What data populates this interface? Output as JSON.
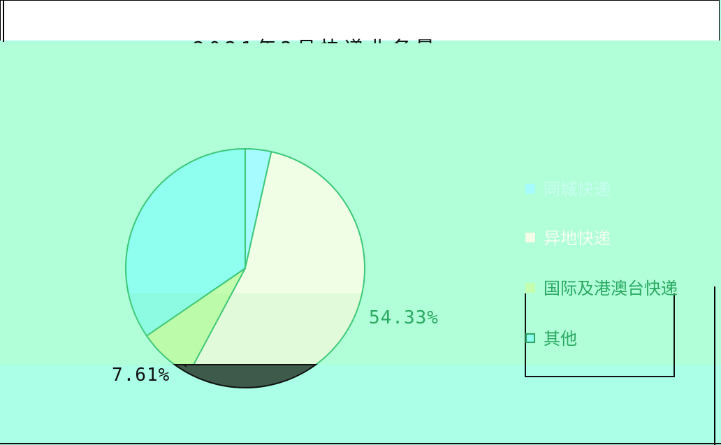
{
  "chart_data": {
    "type": "pie",
    "title": "2021年2月快递业务量",
    "legend": [
      "同城快递",
      "异地快递",
      "国际及港澳台快递",
      "其他"
    ],
    "legend_position": "right",
    "visible_labels": [
      "54.33%",
      "7.61%"
    ],
    "slices": [
      {
        "name": "同城快递",
        "value": 3.5,
        "color": "#a6fbff"
      },
      {
        "name": "异地快递",
        "value": 54.33,
        "color": "#f0fee6"
      },
      {
        "name": "国际及港澳台快递",
        "value": 7.61,
        "color": "#c4ffb0"
      },
      {
        "name": "其他",
        "value": 34.56,
        "color": "#8ffff0"
      }
    ]
  }
}
